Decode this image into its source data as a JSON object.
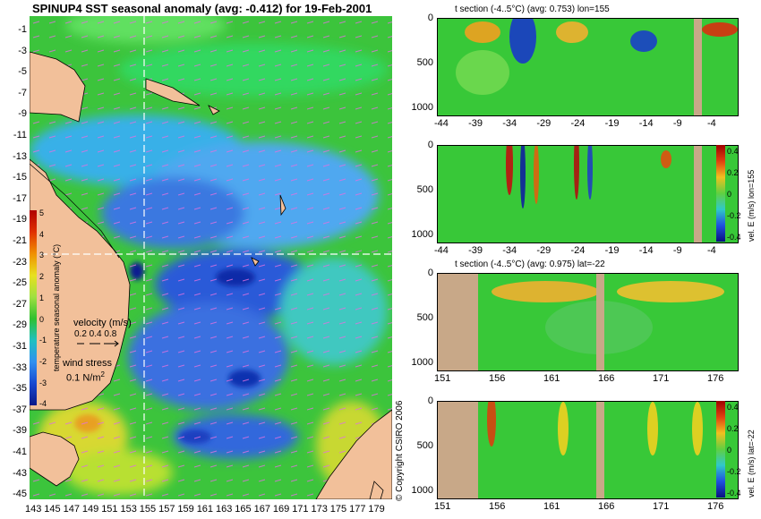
{
  "map": {
    "title": "SPINUP4 SST seasonal anomaly (avg: -0.412) for 19-Feb-2001",
    "lat_ticks": [
      "-1",
      "-3",
      "-5",
      "-7",
      "-9",
      "-11",
      "-13",
      "-15",
      "-17",
      "-19",
      "-21",
      "-23",
      "-25",
      "-27",
      "-29",
      "-31",
      "-33",
      "-35",
      "-37",
      "-39",
      "-41",
      "-43",
      "-45"
    ],
    "lon_ticks": [
      "143",
      "145",
      "147",
      "149",
      "151",
      "153",
      "155",
      "157",
      "159",
      "161",
      "163",
      "165",
      "167",
      "169",
      "171",
      "173",
      "175",
      "177",
      "179"
    ],
    "colorbar": {
      "label": "temperature seasonal anomaly (°C)",
      "ticks": [
        "5",
        "4",
        "3",
        "2",
        "1",
        "0",
        "-1",
        "-2",
        "-3",
        "-4"
      ]
    },
    "velocity_legend": {
      "title": "velocity (m/s)",
      "scale": "0.2 0.4 0.8"
    },
    "wind_legend": {
      "title": "wind stress",
      "scale": "0.1 N/m",
      "superscript": "2"
    },
    "crosshair": {
      "lon": 155,
      "lat": -22
    },
    "colors": {
      "land": "#f2c09a",
      "ocean_base": "#3cc43c",
      "anomaly_cold": "#1a3dcf",
      "anomaly_warm": "#e0c020",
      "vector": "#e070e0"
    }
  },
  "panels": [
    {
      "title": "t section (-4..5°C) (avg: 0.753) lon=155",
      "y_ticks": [
        "0",
        "500",
        "1000"
      ],
      "x_ticks": [
        "-44",
        "-39",
        "-34",
        "-29",
        "-24",
        "-19",
        "-14",
        "-9",
        "-4"
      ],
      "colorbar": null
    },
    {
      "title": "",
      "y_ticks": [
        "0",
        "500",
        "1000"
      ],
      "x_ticks": [
        "-44",
        "-39",
        "-34",
        "-29",
        "-24",
        "-19",
        "-14",
        "-9",
        "-4"
      ],
      "colorbar": {
        "label": "vel. E (m/s) lon=155",
        "ticks": [
          "0.4",
          "0.2",
          "0",
          "-0.2",
          "-0.4"
        ]
      }
    },
    {
      "title": "t section (-4..5°C) (avg: 0.975) lat=-22",
      "y_ticks": [
        "0",
        "500",
        "1000"
      ],
      "x_ticks": [
        "151",
        "156",
        "161",
        "166",
        "171",
        "176"
      ],
      "colorbar": null
    },
    {
      "title": "",
      "y_ticks": [
        "0",
        "500",
        "1000"
      ],
      "x_ticks": [
        "151",
        "156",
        "161",
        "166",
        "171",
        "176"
      ],
      "colorbar": {
        "label": "vel. E (m/s) lat=-22",
        "ticks": [
          "0.4",
          "0.2",
          "0",
          "-0.2",
          "-0.4"
        ]
      }
    }
  ],
  "copyright": "© Copyright CSIRO 2006"
}
